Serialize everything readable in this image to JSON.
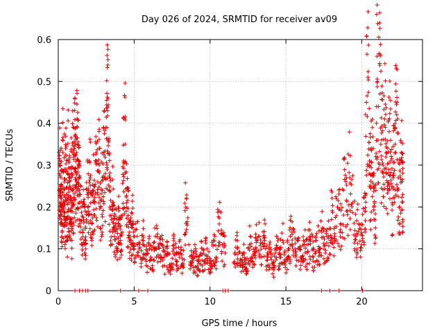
{
  "chart_data": {
    "type": "scatter",
    "title": "Day 026 of 2024, SRMTID for receiver av09",
    "xlabel": "GPS time / hours",
    "ylabel": "SRMTID / TECUs",
    "xlim": [
      0,
      24
    ],
    "ylim": [
      0,
      0.6
    ],
    "xticks": [
      0,
      5,
      10,
      15,
      20
    ],
    "yticks": [
      0,
      0.1,
      0.2,
      0.3,
      0.4,
      0.5,
      0.6
    ],
    "xtick_labels": [
      "0",
      "5",
      "10",
      "15",
      "20"
    ],
    "ytick_labels": [
      "0",
      "0.1",
      "0.2",
      "0.3",
      "0.4",
      "0.5",
      "0.6"
    ],
    "grid": true,
    "marker": "+",
    "series": [
      {
        "name": "SRMTID",
        "color": "#e00000",
        "points": [
          [
            0.05,
            0.24
          ],
          [
            0.1,
            0.31
          ],
          [
            0.12,
            0.19
          ],
          [
            0.18,
            0.27
          ],
          [
            0.2,
            0.22
          ],
          [
            0.25,
            0.14
          ],
          [
            0.3,
            0.33
          ],
          [
            0.35,
            0.2
          ],
          [
            0.4,
            0.26
          ],
          [
            0.45,
            0.17
          ],
          [
            0.5,
            0.29
          ],
          [
            0.55,
            0.23
          ],
          [
            0.6,
            0.13
          ],
          [
            0.65,
            0.31
          ],
          [
            0.7,
            0.21
          ],
          [
            0.75,
            0.25
          ],
          [
            0.8,
            0.16
          ],
          [
            0.85,
            0.28
          ],
          [
            0.9,
            0.12
          ],
          [
            0.95,
            0.33
          ],
          [
            1.0,
            0.22
          ],
          [
            1.05,
            0.29
          ],
          [
            1.1,
            0.37
          ],
          [
            1.15,
            0.27
          ],
          [
            1.2,
            0.33
          ],
          [
            1.25,
            0.39
          ],
          [
            1.3,
            0.24
          ],
          [
            1.35,
            0.31
          ],
          [
            1.4,
            0.21
          ],
          [
            1.5,
            0.2
          ],
          [
            1.6,
            0.14
          ],
          [
            1.7,
            0.2
          ],
          [
            1.8,
            0.12
          ],
          [
            1.9,
            0.23
          ],
          [
            2.0,
            0.19
          ],
          [
            2.1,
            0.27
          ],
          [
            2.2,
            0.16
          ],
          [
            2.3,
            0.24
          ],
          [
            2.4,
            0.21
          ],
          [
            2.5,
            0.31
          ],
          [
            2.6,
            0.26
          ],
          [
            2.7,
            0.3
          ],
          [
            2.8,
            0.2
          ],
          [
            2.9,
            0.24
          ],
          [
            3.0,
            0.33
          ],
          [
            3.1,
            0.28
          ],
          [
            3.2,
            0.39
          ],
          [
            3.25,
            0.43
          ],
          [
            3.3,
            0.36
          ],
          [
            3.4,
            0.2
          ],
          [
            3.5,
            0.17
          ],
          [
            3.6,
            0.21
          ],
          [
            3.7,
            0.13
          ],
          [
            3.8,
            0.16
          ],
          [
            3.9,
            0.1
          ],
          [
            4.0,
            0.17
          ],
          [
            4.1,
            0.12
          ],
          [
            4.2,
            0.14
          ],
          [
            4.3,
            0.31
          ],
          [
            4.4,
            0.35
          ],
          [
            4.5,
            0.21
          ],
          [
            4.6,
            0.18
          ],
          [
            4.7,
            0.14
          ],
          [
            4.8,
            0.12
          ],
          [
            4.9,
            0.16
          ],
          [
            5.0,
            0.1
          ],
          [
            5.2,
            0.13
          ],
          [
            5.4,
            0.08
          ],
          [
            5.6,
            0.12
          ],
          [
            5.8,
            0.07
          ],
          [
            6.0,
            0.1
          ],
          [
            6.2,
            0.06
          ],
          [
            6.4,
            0.13
          ],
          [
            6.6,
            0.08
          ],
          [
            6.8,
            0.11
          ],
          [
            7.0,
            0.06
          ],
          [
            7.2,
            0.09
          ],
          [
            7.4,
            0.05
          ],
          [
            7.6,
            0.1
          ],
          [
            7.8,
            0.07
          ],
          [
            8.0,
            0.09
          ],
          [
            8.2,
            0.06
          ],
          [
            8.4,
            0.2
          ],
          [
            8.6,
            0.11
          ],
          [
            8.8,
            0.06
          ],
          [
            9.0,
            0.08
          ],
          [
            9.2,
            0.05
          ],
          [
            9.4,
            0.09
          ],
          [
            9.6,
            0.07
          ],
          [
            9.8,
            0.1
          ],
          [
            10.0,
            0.06
          ],
          [
            10.2,
            0.11
          ],
          [
            10.4,
            0.08
          ],
          [
            10.6,
            0.19
          ],
          [
            10.8,
            0.11
          ],
          [
            11.0,
            0.09
          ],
          [
            11.6,
            0.07
          ],
          [
            11.8,
            0.1
          ],
          [
            12.0,
            0.06
          ],
          [
            12.2,
            0.09
          ],
          [
            12.4,
            0.05
          ],
          [
            12.6,
            0.11
          ],
          [
            12.8,
            0.07
          ],
          [
            13.0,
            0.1
          ],
          [
            13.2,
            0.13
          ],
          [
            13.4,
            0.08
          ],
          [
            13.6,
            0.12
          ],
          [
            13.8,
            0.06
          ],
          [
            14.0,
            0.09
          ],
          [
            14.2,
            0.05
          ],
          [
            14.4,
            0.1
          ],
          [
            14.6,
            0.08
          ],
          [
            14.8,
            0.12
          ],
          [
            15.0,
            0.07
          ],
          [
            15.2,
            0.1
          ],
          [
            15.4,
            0.14
          ],
          [
            15.6,
            0.09
          ],
          [
            15.8,
            0.12
          ],
          [
            16.0,
            0.07
          ],
          [
            16.2,
            0.11
          ],
          [
            16.4,
            0.09
          ],
          [
            16.6,
            0.13
          ],
          [
            16.8,
            0.08
          ],
          [
            17.0,
            0.12
          ],
          [
            17.2,
            0.1
          ],
          [
            17.4,
            0.15
          ],
          [
            17.6,
            0.09
          ],
          [
            17.8,
            0.13
          ],
          [
            18.0,
            0.17
          ],
          [
            18.2,
            0.12
          ],
          [
            18.4,
            0.2
          ],
          [
            18.6,
            0.16
          ],
          [
            18.8,
            0.24
          ],
          [
            19.0,
            0.19
          ],
          [
            19.2,
            0.27
          ],
          [
            19.4,
            0.21
          ],
          [
            19.6,
            0.13
          ],
          [
            19.8,
            0.16
          ],
          [
            20.0,
            0.11
          ],
          [
            20.2,
            0.19
          ],
          [
            20.3,
            0.45
          ],
          [
            20.4,
            0.51
          ],
          [
            20.5,
            0.31
          ],
          [
            20.6,
            0.25
          ],
          [
            20.7,
            0.39
          ],
          [
            20.8,
            0.2
          ],
          [
            20.9,
            0.15
          ],
          [
            21.0,
            0.56
          ],
          [
            21.1,
            0.44
          ],
          [
            21.2,
            0.47
          ],
          [
            21.3,
            0.36
          ],
          [
            21.4,
            0.3
          ],
          [
            21.5,
            0.41
          ],
          [
            21.6,
            0.33
          ],
          [
            21.7,
            0.25
          ],
          [
            21.8,
            0.38
          ],
          [
            21.9,
            0.31
          ],
          [
            22.0,
            0.21
          ],
          [
            22.1,
            0.28
          ],
          [
            22.2,
            0.35
          ],
          [
            22.3,
            0.42
          ],
          [
            22.4,
            0.27
          ],
          [
            22.5,
            0.2
          ],
          [
            22.6,
            0.33
          ],
          [
            22.7,
            0.23
          ]
        ],
        "zero_points": [
          1.1,
          1.4,
          1.6,
          1.8,
          1.95,
          4.1,
          5.3,
          5.9,
          10.85,
          11.0,
          11.2,
          17.35,
          17.9,
          18.5,
          20.05
        ]
      }
    ]
  }
}
